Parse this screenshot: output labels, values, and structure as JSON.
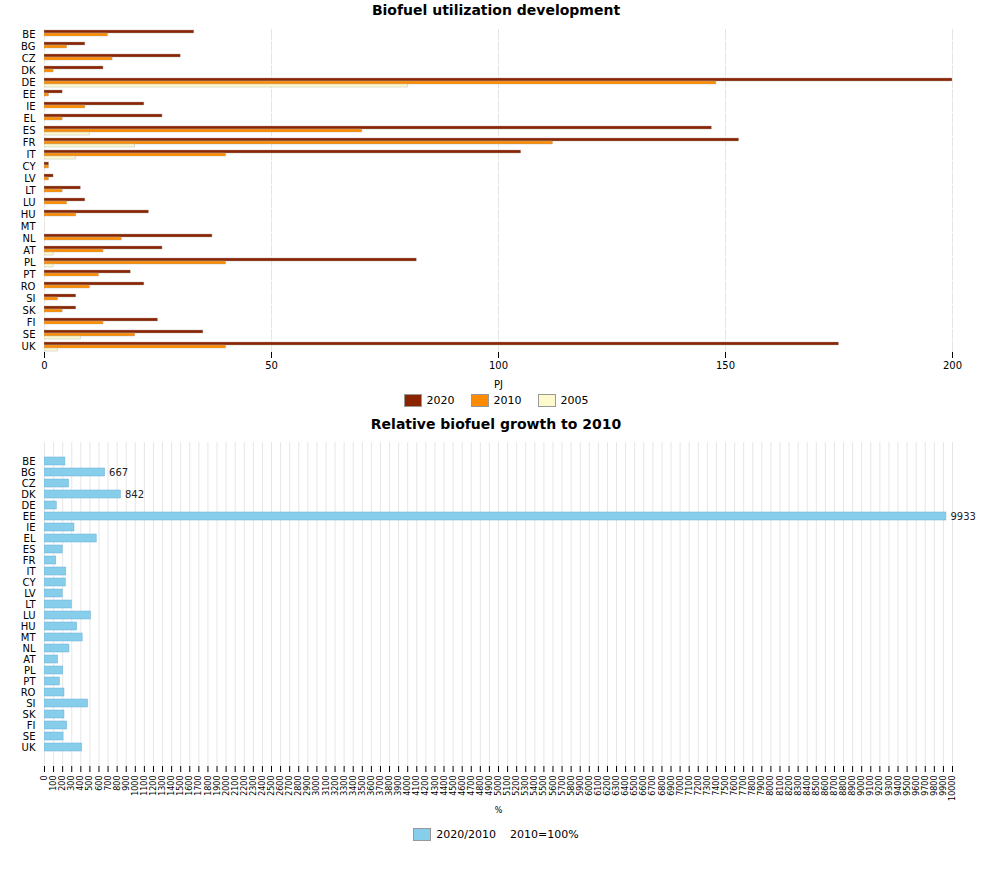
{
  "chart_data": [
    {
      "type": "bar",
      "orientation": "horizontal",
      "title": "Biofuel utilization development",
      "categories": [
        "BE",
        "BG",
        "CZ",
        "DK",
        "DE",
        "EE",
        "IE",
        "EL",
        "ES",
        "FR",
        "IT",
        "CY",
        "LV",
        "LT",
        "LU",
        "HU",
        "MT",
        "NL",
        "AT",
        "PL",
        "PT",
        "RO",
        "SI",
        "SK",
        "FI",
        "SE",
        "UK"
      ],
      "series": [
        {
          "name": "2020",
          "color": "#8B2500",
          "values": [
            33,
            9,
            30,
            13,
            200,
            4,
            22,
            26,
            147,
            153,
            105,
            1,
            2,
            8,
            9,
            23,
            0,
            37,
            26,
            82,
            19,
            22,
            7,
            7,
            25,
            35,
            175
          ]
        },
        {
          "name": "2010",
          "color": "#FF8C00",
          "values": [
            14,
            5,
            15,
            2,
            148,
            1,
            9,
            4,
            70,
            112,
            40,
            1,
            1,
            4,
            5,
            7,
            0,
            17,
            13,
            40,
            12,
            10,
            3,
            4,
            13,
            20,
            40
          ]
        },
        {
          "name": "2005",
          "color": "#FFFACD",
          "values": [
            0,
            0,
            0,
            0,
            80,
            0,
            0,
            0,
            10,
            20,
            7,
            0,
            0,
            0,
            0,
            0,
            0,
            0,
            2,
            2,
            0,
            0,
            0,
            0,
            0,
            8,
            3
          ]
        }
      ],
      "xlabel": "PJ",
      "xlim": [
        0,
        200
      ],
      "xticks": [
        0,
        50,
        100,
        150,
        200
      ],
      "grid": true,
      "legend": "bottom"
    },
    {
      "type": "bar",
      "orientation": "horizontal",
      "title": "Relative biofuel growth to 2010",
      "categories": [
        "BE",
        "BG",
        "CZ",
        "DK",
        "DE",
        "EE",
        "IE",
        "EL",
        "ES",
        "FR",
        "IT",
        "CY",
        "LV",
        "LT",
        "LU",
        "HU",
        "MT",
        "NL",
        "AT",
        "PL",
        "PT",
        "RO",
        "SI",
        "SK",
        "FI",
        "SE",
        "UK"
      ],
      "series": [
        {
          "name": "2020/2010    2010=100%",
          "color": "#87CEEB",
          "values": [
            230,
            667,
            270,
            842,
            135,
            9933,
            330,
            575,
            200,
            130,
            240,
            235,
            200,
            300,
            510,
            360,
            420,
            275,
            150,
            205,
            170,
            220,
            480,
            220,
            250,
            210,
            415
          ]
        }
      ],
      "annotations": [
        {
          "category": "BG",
          "value": 667,
          "text": "667"
        },
        {
          "category": "DK",
          "value": 842,
          "text": "842"
        },
        {
          "category": "EE",
          "value": 9933,
          "text": "9933"
        }
      ],
      "xlabel": "%",
      "xlim": [
        0,
        10000
      ],
      "xticks": [
        0,
        100,
        200,
        300,
        400,
        500,
        600,
        700,
        800,
        900,
        1000,
        1100,
        1200,
        1300,
        1400,
        1500,
        1600,
        1700,
        1800,
        1900,
        2000,
        2100,
        2200,
        2300,
        2400,
        2500,
        2600,
        2700,
        2800,
        2900,
        3000,
        3100,
        3200,
        3300,
        3400,
        3500,
        3600,
        3700,
        3800,
        3900,
        4000,
        4100,
        4200,
        4300,
        4400,
        4500,
        4600,
        4700,
        4800,
        4900,
        5000,
        5100,
        5200,
        5300,
        5400,
        5500,
        5600,
        5700,
        5800,
        5900,
        6000,
        6100,
        6200,
        6300,
        6400,
        6500,
        6600,
        6700,
        6800,
        6900,
        7000,
        7100,
        7200,
        7300,
        7400,
        7500,
        7600,
        7700,
        7800,
        7900,
        8000,
        8100,
        8200,
        8300,
        8400,
        8500,
        8600,
        8700,
        8800,
        8900,
        9000,
        9100,
        9200,
        9300,
        9400,
        9500,
        9600,
        9700,
        9800,
        9900,
        10000
      ],
      "grid": true,
      "legend": "bottom"
    }
  ]
}
